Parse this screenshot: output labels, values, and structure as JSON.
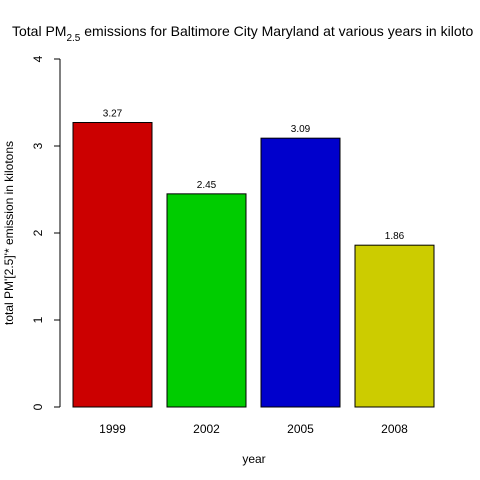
{
  "chart_data": {
    "type": "bar",
    "title": {
      "prefix": "Total PM",
      "subscript": "2.5",
      "suffix": " emissions for Baltimore City Maryland at various years in kiloto"
    },
    "xlabel": "year",
    "ylabel": "total PM'[2.5]'* emission in kilotons",
    "categories": [
      "1999",
      "2002",
      "2005",
      "2008"
    ],
    "values": [
      3.27,
      2.45,
      3.09,
      1.86
    ],
    "value_labels": [
      "3.27",
      "2.45",
      "3.09",
      "1.86"
    ],
    "colors": [
      "#cc0000",
      "#00cc00",
      "#0000cc",
      "#cccc00"
    ],
    "ylim": [
      0,
      4
    ],
    "yticks": [
      "0",
      "1",
      "2",
      "3",
      "4"
    ],
    "grid": false,
    "legend": "none"
  }
}
